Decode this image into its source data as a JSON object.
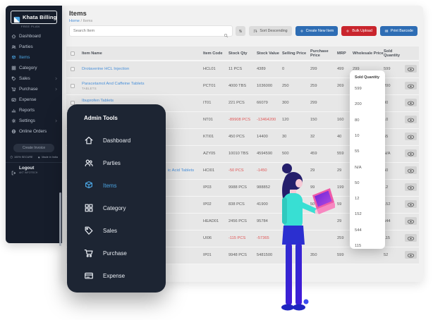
{
  "app": {
    "name": "Khata Billing",
    "plan": "FREE PLAN",
    "logo_icon": "khata-logo-icon"
  },
  "colors": {
    "sidebar_bg": "#161d2b",
    "overlay_bg": "#1d2533",
    "main_bg": "#f1f1f1",
    "accent_blue": "#2e6db4",
    "accent_red": "#c9252d",
    "link_blue": "#4a90d9",
    "active_blue": "#4aa3e0",
    "negative_red": "#e05757"
  },
  "sidebar": {
    "items": [
      {
        "label": "Dashboard",
        "icon": "home-icon",
        "active": false,
        "chevron": false
      },
      {
        "label": "Parties",
        "icon": "users-icon",
        "active": false,
        "chevron": false
      },
      {
        "label": "Items",
        "icon": "box-icon",
        "active": true,
        "chevron": false
      },
      {
        "label": "Category",
        "icon": "grid-icon",
        "active": false,
        "chevron": false
      },
      {
        "label": "Sales",
        "icon": "tag-icon",
        "active": false,
        "chevron": true
      },
      {
        "label": "Purchase",
        "icon": "cart-icon",
        "active": false,
        "chevron": true
      },
      {
        "label": "Expense",
        "icon": "card-icon",
        "active": false,
        "chevron": false
      },
      {
        "label": "Reports",
        "icon": "chart-icon",
        "active": false,
        "chevron": false
      },
      {
        "label": "Settings",
        "icon": "gear-icon",
        "active": false,
        "chevron": true
      },
      {
        "label": "Online Orders",
        "icon": "globe-icon",
        "active": false,
        "chevron": false
      }
    ],
    "footer": {
      "create_invoice_label": "Create Invoice",
      "secure_label": "100% SECURE",
      "secure_icon": "shield-icon",
      "made_in_label": "Made in India",
      "made_in_icon": "heart-icon",
      "logout_label": "Logout",
      "logout_icon": "logout-icon",
      "logout_sub": "AKT INFOTECH"
    }
  },
  "header": {
    "title": "Items",
    "breadcrumb": {
      "home": "Home",
      "sep": " / ",
      "current": "Items"
    }
  },
  "toolbar": {
    "search_placeholder": "Search Item",
    "search_icon": "search-icon",
    "sort_toggle_icon": "sort-arrows-icon",
    "sort_descending_label": "Sort Descending",
    "sort_descending_icon": "sort-desc-icon",
    "create_new_item_label": "Create New Item",
    "create_icon": "plus-icon",
    "bulk_upload_label": "Bulk Upload",
    "bulk_icon": "plus-icon",
    "print_barcode_label": "Print Barcode",
    "barcode_icon": "barcode-icon"
  },
  "table": {
    "columns": [
      "Item Name",
      "Item Code",
      "Stock Qty",
      "Stock Value",
      "Selling Price",
      "Purchase Price",
      "MRP",
      "Wholesale Price",
      "Sold Quantity"
    ],
    "row_action_icon": "eye-icon",
    "rows": [
      {
        "name": "Drotaverine HCL Injection",
        "sub": "",
        "code": "HCL01",
        "stock_qty": "11 PCS",
        "stock_value": "4389",
        "selling": "0",
        "purchase": "299",
        "mrp": "499",
        "wholesale": "299",
        "sold": "599"
      },
      {
        "name": "Paracetamol And Caffeine Tablets",
        "sub": "TABLETS",
        "code": "PCT01",
        "stock_qty": "4000 TBS",
        "stock_value": "1036000",
        "selling": "250",
        "purchase": "259",
        "mrp": "269",
        "wholesale": "",
        "sold": "200"
      },
      {
        "name": "Ibuprofen Tablets",
        "sub": "TABLETS",
        "code": "IT01",
        "stock_qty": "221 PCS",
        "stock_value": "66079",
        "selling": "300",
        "purchase": "299",
        "mrp": "",
        "wholesale": "",
        "sold": "80"
      },
      {
        "name": "",
        "sub": "",
        "code": "NT01",
        "stock_qty": "-89908 PCS",
        "stock_value": "-13464200",
        "selling": "120",
        "purchase": "150",
        "mrp": "160",
        "wholesale": "",
        "sold": "10"
      },
      {
        "name": "",
        "sub": "",
        "code": "KTI01",
        "stock_qty": "450 PCS",
        "stock_value": "14400",
        "selling": "30",
        "purchase": "32",
        "mrp": "40",
        "wholesale": "",
        "sold": "55"
      },
      {
        "name": "",
        "sub": "",
        "code": "AZY05",
        "stock_qty": "10010 TBS",
        "stock_value": "4594590",
        "selling": "500",
        "purchase": "459",
        "mrp": "559",
        "wholesale": "",
        "sold": "N/A"
      },
      {
        "name": "ic Acid Tablets",
        "sub": "",
        "code": "HCI01",
        "stock_qty": "-50 PCS",
        "stock_value": "-1450",
        "selling": "29",
        "purchase": "29",
        "mrp": "29",
        "wholesale": "",
        "sold": "50",
        "name_clipped": true
      },
      {
        "name": "",
        "sub": "",
        "code": "IP03",
        "stock_qty": "9988 PCS",
        "stock_value": "988852",
        "selling": "100",
        "purchase": "99",
        "mrp": "199",
        "wholesale": "",
        "sold": "12"
      },
      {
        "name": "",
        "sub": "",
        "code": "IP02",
        "stock_qty": "838 PCS",
        "stock_value": "41900",
        "selling": "",
        "purchase": "50",
        "mrp": "59",
        "wholesale": "",
        "sold": "152"
      },
      {
        "name": "",
        "sub": "",
        "code": "HEAD01",
        "stock_qty": "2456 PCS",
        "stock_value": "95784",
        "selling": "",
        "purchase": "",
        "mrp": "29",
        "wholesale": "",
        "sold": "544"
      },
      {
        "name": "",
        "sub": "",
        "code": "UI06",
        "stock_qty": "-115 PCS",
        "stock_value": "-57365",
        "selling": "",
        "purchase": "",
        "mrp": "259",
        "wholesale": "",
        "sold": "115"
      },
      {
        "name": "",
        "sub": "",
        "code": "IP01",
        "stock_qty": "9948 PCS",
        "stock_value": "5481500",
        "selling": "",
        "purchase": "350",
        "mrp": "599",
        "wholesale": "",
        "sold": "52"
      }
    ]
  },
  "drag_panel": {
    "header": "Sold Quantity",
    "values": [
      "599",
      "200",
      "80",
      "10",
      "55",
      "N/A",
      "50",
      "12",
      "152",
      "544",
      "115"
    ]
  },
  "admin_menu": {
    "title": "Admin Tools",
    "items": [
      {
        "label": "Dashboard",
        "icon": "home-icon",
        "active": false
      },
      {
        "label": "Parties",
        "icon": "users-icon",
        "active": false
      },
      {
        "label": "Items",
        "icon": "box-icon",
        "active": true
      },
      {
        "label": "Category",
        "icon": "grid-icon",
        "active": false
      },
      {
        "label": "Sales",
        "icon": "tag-icon",
        "active": false
      },
      {
        "label": "Purchase",
        "icon": "cart-icon",
        "active": false
      },
      {
        "label": "Expense",
        "icon": "card-icon",
        "active": false
      }
    ]
  },
  "illustration": {
    "description": "woman-with-laptop-illustration"
  }
}
